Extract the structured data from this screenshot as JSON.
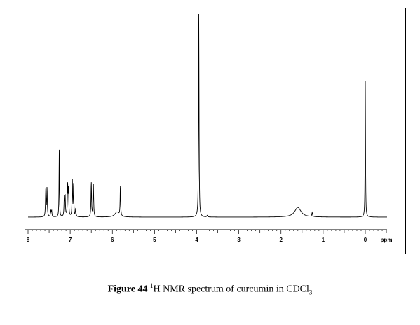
{
  "chart_data": {
    "type": "line",
    "title": "",
    "xlabel": "ppm",
    "ylabel": "",
    "x_axis_reversed": true,
    "xlim": [
      8.0,
      -0.5
    ],
    "ylim": [
      0,
      1.0
    ],
    "xticks": [
      {
        "value": 8,
        "label": "8"
      },
      {
        "value": 7,
        "label": "7"
      },
      {
        "value": 6,
        "label": "6"
      },
      {
        "value": 5,
        "label": "5"
      },
      {
        "value": 4,
        "label": "4"
      },
      {
        "value": 3,
        "label": "3"
      },
      {
        "value": 2,
        "label": "2"
      },
      {
        "value": 1,
        "label": "1"
      },
      {
        "value": 0,
        "label": "0"
      }
    ],
    "grid": false,
    "legend": "none",
    "peaks": [
      {
        "ppm": 7.58,
        "height": 0.13,
        "width": 0.008
      },
      {
        "ppm": 7.55,
        "height": 0.14,
        "width": 0.008
      },
      {
        "ppm": 7.46,
        "height": 0.03,
        "width": 0.008
      },
      {
        "ppm": 7.44,
        "height": 0.03,
        "width": 0.008
      },
      {
        "ppm": 7.26,
        "height": 0.33,
        "width": 0.006
      },
      {
        "ppm": 7.14,
        "height": 0.09,
        "width": 0.008
      },
      {
        "ppm": 7.12,
        "height": 0.1,
        "width": 0.008
      },
      {
        "ppm": 7.06,
        "height": 0.15,
        "width": 0.008
      },
      {
        "ppm": 7.04,
        "height": 0.13,
        "width": 0.008
      },
      {
        "ppm": 6.95,
        "height": 0.19,
        "width": 0.007
      },
      {
        "ppm": 6.92,
        "height": 0.16,
        "width": 0.007
      },
      {
        "ppm": 6.87,
        "height": 0.04,
        "width": 0.008
      },
      {
        "ppm": 6.5,
        "height": 0.17,
        "width": 0.008
      },
      {
        "ppm": 6.45,
        "height": 0.16,
        "width": 0.008
      },
      {
        "ppm": 5.89,
        "height": 0.025,
        "width": 0.06
      },
      {
        "ppm": 5.81,
        "height": 0.15,
        "width": 0.007
      },
      {
        "ppm": 3.95,
        "height": 1.0,
        "width": 0.007
      },
      {
        "ppm": 3.75,
        "height": 0.008,
        "width": 0.01
      },
      {
        "ppm": 1.6,
        "height": 0.048,
        "width": 0.09
      },
      {
        "ppm": 1.26,
        "height": 0.02,
        "width": 0.01
      },
      {
        "ppm": 0.0,
        "height": 0.67,
        "width": 0.006
      }
    ]
  },
  "caption": {
    "figure_label": "Figure 44",
    "nucleus_sup": "1",
    "text_main": "H NMR spectrum of curcumin in CDCl",
    "subscript": "3"
  }
}
